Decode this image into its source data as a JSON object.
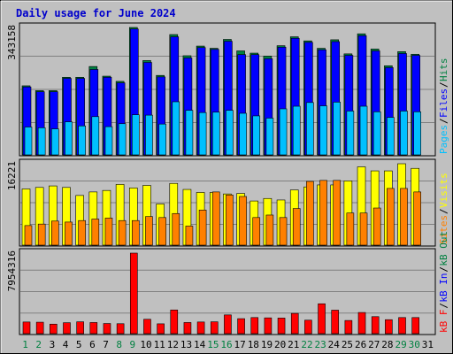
{
  "colors": {
    "background": "#c0c0c0",
    "plot_bg": "#c0c0c0",
    "grid": "#808080",
    "title": "#0000cc",
    "hits": "#008040",
    "files": "#0000ff",
    "pages": "#00c0ff",
    "visits": "#ffff00",
    "sites": "#ff8000",
    "kbytes": "#ff0000",
    "kb_in": "#0000ff",
    "kb_out": "#008040",
    "weekend_label": "#008040",
    "weekday_label": "#000000"
  },
  "chart_data": [
    {
      "type": "bar",
      "title": "Daily usage for June 2024",
      "panel": "hits_files_pages",
      "y_max_label": "343158",
      "ylim": [
        0,
        343158
      ],
      "legend": [
        {
          "text": "Pages",
          "color": "#00c0ff"
        },
        {
          "text": "Files",
          "color": "#0000ff"
        },
        {
          "text": "Hits",
          "color": "#008040"
        }
      ],
      "categories": [
        "1",
        "2",
        "3",
        "4",
        "5",
        "6",
        "7",
        "8",
        "9",
        "10",
        "11",
        "12",
        "13",
        "14",
        "15",
        "16",
        "17",
        "18",
        "19",
        "20",
        "21",
        "22",
        "23",
        "24",
        "25",
        "26",
        "27",
        "28",
        "29",
        "30",
        "31"
      ],
      "series": [
        {
          "name": "Hits",
          "values": [
            186000,
            173000,
            173000,
            209000,
            209000,
            238000,
            212000,
            198000,
            343158,
            254000,
            214000,
            324000,
            267000,
            293000,
            287000,
            311000,
            280000,
            274000,
            266000,
            294000,
            318000,
            307000,
            287000,
            310000,
            272000,
            326000,
            285000,
            240000,
            278000,
            271000,
            0
          ]
        },
        {
          "name": "Files",
          "values": [
            183000,
            170000,
            170000,
            206000,
            206000,
            230000,
            209000,
            194000,
            339000,
            249000,
            210000,
            318000,
            261000,
            289000,
            284000,
            306000,
            270000,
            270000,
            259000,
            290000,
            314000,
            303000,
            283000,
            305000,
            268000,
            321000,
            280000,
            235000,
            273000,
            268000,
            0
          ]
        },
        {
          "name": "Pages",
          "values": [
            75000,
            73000,
            70000,
            89000,
            78000,
            103000,
            76000,
            84000,
            108000,
            107000,
            83000,
            143000,
            120000,
            114000,
            115000,
            120000,
            112000,
            105000,
            99000,
            124000,
            131000,
            141000,
            132000,
            142000,
            118000,
            131000,
            116000,
            101000,
            118000,
            116000,
            0
          ]
        }
      ]
    },
    {
      "type": "bar",
      "panel": "visits_sites",
      "y_max_label": "16221",
      "ylim": [
        0,
        16221
      ],
      "legend": [
        {
          "text": "Sites",
          "color": "#ff8000"
        },
        {
          "text": "Visits",
          "color": "#ffff00"
        }
      ],
      "categories": [
        "1",
        "2",
        "3",
        "4",
        "5",
        "6",
        "7",
        "8",
        "9",
        "10",
        "11",
        "12",
        "13",
        "14",
        "15",
        "16",
        "17",
        "18",
        "19",
        "20",
        "21",
        "22",
        "23",
        "24",
        "25",
        "26",
        "27",
        "28",
        "29",
        "30",
        "31"
      ],
      "series": [
        {
          "name": "Visits",
          "values": [
            11200,
            11500,
            11800,
            11500,
            9900,
            10600,
            10900,
            12100,
            11400,
            11900,
            8200,
            12300,
            11100,
            10500,
            10500,
            10200,
            10300,
            8800,
            9300,
            9000,
            11000,
            11600,
            12000,
            12000,
            12800,
            15600,
            14800,
            14800,
            16221,
            15300,
            0
          ]
        },
        {
          "name": "Sites",
          "values": [
            3900,
            4200,
            4800,
            4600,
            4900,
            5200,
            5400,
            4900,
            4900,
            5700,
            5500,
            6300,
            3800,
            7000,
            10600,
            10000,
            9700,
            5500,
            6000,
            5500,
            7300,
            12700,
            12900,
            12900,
            6400,
            6400,
            7400,
            11300,
            11300,
            10600,
            0
          ]
        }
      ]
    },
    {
      "type": "bar",
      "panel": "kbytes",
      "y_max_label": "7954316",
      "ylim": [
        0,
        7954316
      ],
      "legend": [
        {
          "text": "kB F",
          "color": "#ff0000"
        },
        {
          "text": "kB In",
          "color": "#0000ff"
        },
        {
          "text": "kB Out",
          "color": "#008040"
        }
      ],
      "categories": [
        "1",
        "2",
        "3",
        "4",
        "5",
        "6",
        "7",
        "8",
        "9",
        "10",
        "11",
        "12",
        "13",
        "14",
        "15",
        "16",
        "17",
        "18",
        "19",
        "20",
        "21",
        "22",
        "23",
        "24",
        "25",
        "26",
        "27",
        "28",
        "29",
        "30",
        "31"
      ],
      "weekend_days": [
        "1",
        "2",
        "8",
        "9",
        "15",
        "16",
        "22",
        "23",
        "29",
        "30"
      ],
      "series": [
        {
          "name": "kB F",
          "values": [
            1150000,
            1130000,
            940000,
            1080000,
            1170000,
            1100000,
            1000000,
            980000,
            7954316,
            1420000,
            970000,
            2340000,
            1100000,
            1150000,
            1170000,
            1850000,
            1480000,
            1590000,
            1560000,
            1540000,
            2000000,
            1330000,
            2950000,
            2320000,
            1300000,
            2090000,
            1680000,
            1380000,
            1590000,
            1590000,
            0
          ]
        }
      ]
    }
  ]
}
